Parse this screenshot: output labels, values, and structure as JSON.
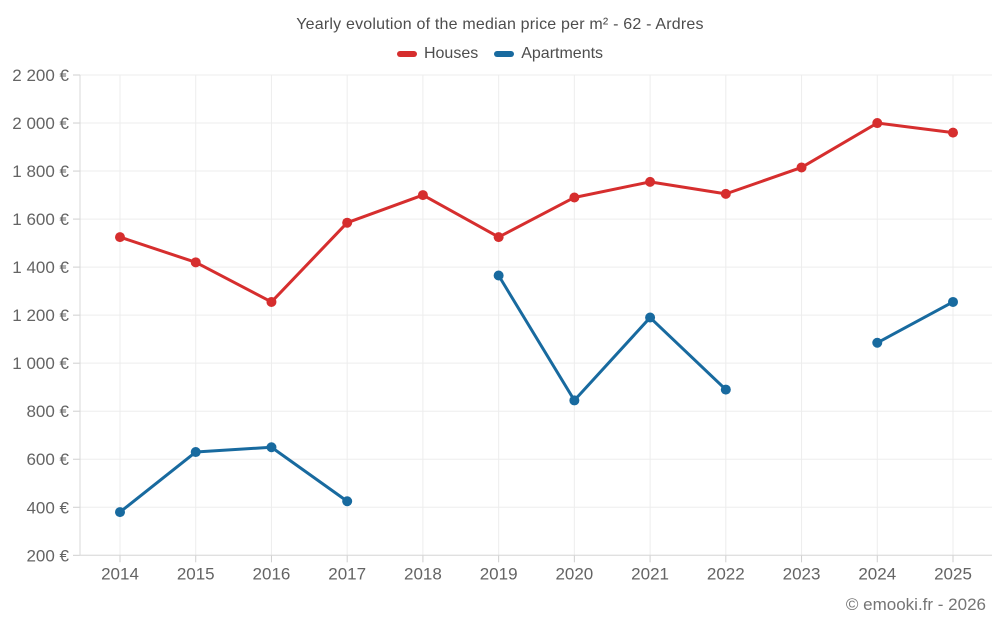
{
  "title": "Yearly evolution of the median price per m² - 62 - Ardres",
  "attribution": "© emooki.fr - 2026",
  "legend": [
    {
      "label": "Houses",
      "color": "#d62e2e"
    },
    {
      "label": "Apartments",
      "color": "#186a9f"
    }
  ],
  "colors": {
    "grid": "#ededed",
    "axis": "#d8d8d8",
    "tick": "#cfcfcf",
    "label": "#646464",
    "title": "#4d4d4d",
    "houses": "#d62e2e",
    "apartments": "#186a9f"
  },
  "chart_data": {
    "type": "line",
    "title": "Yearly evolution of the median price per m² - 62 - Ardres",
    "x": [
      2014,
      2015,
      2016,
      2017,
      2018,
      2019,
      2020,
      2021,
      2022,
      2023,
      2024,
      2025
    ],
    "series": [
      {
        "name": "Houses",
        "color": "#d62e2e",
        "values": [
          1525,
          1420,
          1255,
          1585,
          1700,
          1525,
          1690,
          1755,
          1705,
          1815,
          2000,
          1960
        ]
      },
      {
        "name": "Apartments",
        "color": "#186a9f",
        "values": [
          380,
          630,
          650,
          425,
          null,
          1365,
          845,
          1190,
          890,
          null,
          1085,
          1255
        ]
      }
    ],
    "ylim": [
      200,
      2200
    ],
    "ytick_values": [
      200,
      400,
      600,
      800,
      1000,
      1200,
      1400,
      1600,
      1800,
      2000,
      2200
    ],
    "ytick_labels": [
      "200 €",
      "400 €",
      "600 €",
      "800 €",
      "1 000 €",
      "1 200 €",
      "1 400 €",
      "1 600 €",
      "1 800 €",
      "2 000 €",
      "2 200 €"
    ],
    "xlabel": "",
    "ylabel": "",
    "grid": true,
    "legend_position": "top",
    "currency": "€"
  }
}
